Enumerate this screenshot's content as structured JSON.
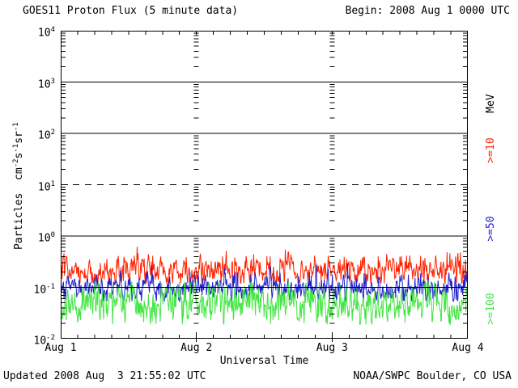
{
  "chart_data": {
    "type": "line",
    "title": "GOES11 Proton Flux (5 minute data)",
    "begin_label": "Begin: 2008 Aug 1 0000 UTC",
    "xlabel": "Universal Time",
    "ylabel_segments": [
      {
        "t": "Particles  cm"
      },
      {
        "sup": "-2"
      },
      {
        "t": "s"
      },
      {
        "sup": "-1"
      },
      {
        "t": "sr"
      },
      {
        "sup": "-1"
      }
    ],
    "unit_label": "MeV",
    "updated": "Updated 2008 Aug  3 21:55:02 UTC",
    "credit": "NOAA/SWPC Boulder, CO USA",
    "y_axis": {
      "scale": "log",
      "min": 0.01,
      "max": 10000,
      "ticks": [
        {
          "base": "10",
          "exp": "4",
          "value": 10000
        },
        {
          "base": "10",
          "exp": "3",
          "value": 1000
        },
        {
          "base": "10",
          "exp": "2",
          "value": 100
        },
        {
          "base": "10",
          "exp": "1",
          "value": 10
        },
        {
          "base": "10",
          "exp": "0",
          "value": 1
        },
        {
          "base": "10",
          "exp": "-1",
          "value": 0.1
        },
        {
          "base": "10",
          "exp": "-2",
          "value": 0.01
        }
      ]
    },
    "x_axis": {
      "span_days": 3,
      "tick_labels": [
        "Aug 1",
        "Aug 2",
        "Aug 3",
        "Aug 4"
      ],
      "minor_tick_hours": 3
    },
    "grid": {
      "solid_lines_at": [
        1000,
        100,
        1,
        0.1
      ],
      "dashed_lines_at": [
        10
      ]
    },
    "series": [
      {
        "name": "Protons >=10 MeV",
        "legend": ">=10",
        "color": "#FF2200",
        "points_per_day": 288,
        "approx": {
          "typical": 0.22,
          "min": 0.12,
          "max": 0.65
        },
        "gen": {
          "seed": 101,
          "log10_mean": -0.66,
          "log10_sigma": 0.13,
          "ar": 0.5,
          "log10_min": -0.92,
          "log10_max": -0.16,
          "spike_prob": 0.03,
          "spike_amp": 0.32
        }
      },
      {
        "name": "Protons >=50 MeV",
        "legend": ">=50",
        "color": "#2222CC",
        "points_per_day": 288,
        "approx": {
          "typical": 0.1,
          "min": 0.055,
          "max": 0.3
        },
        "gen": {
          "seed": 202,
          "log10_mean": -1.01,
          "log10_sigma": 0.12,
          "ar": 0.45,
          "log10_min": -1.27,
          "log10_max": -0.53,
          "spike_prob": 0.02,
          "spike_amp": 0.28
        }
      },
      {
        "name": "Protons >=100 MeV",
        "legend": ">=100",
        "color": "#44E544",
        "points_per_day": 288,
        "approx": {
          "typical": 0.05,
          "min": 0.019,
          "max": 0.12
        },
        "gen": {
          "seed": 303,
          "log10_mean": -1.33,
          "log10_sigma": 0.18,
          "ar": 0.4,
          "log10_min": -1.72,
          "log10_max": -0.9,
          "spike_prob": 0.02,
          "spike_amp": 0.25
        }
      }
    ]
  }
}
